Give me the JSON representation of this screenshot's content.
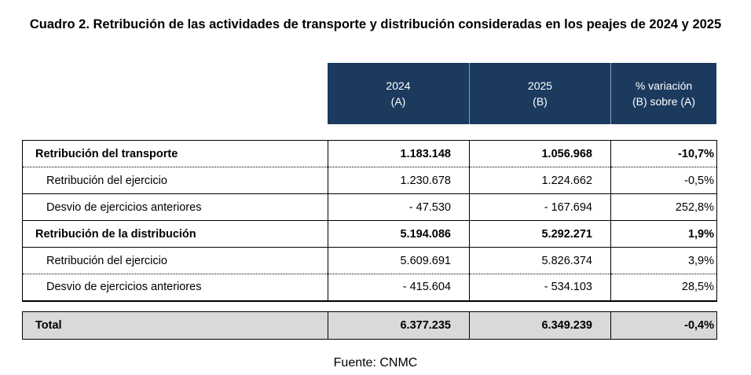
{
  "title": "Cuadro 2. Retribución de las actividades de transporte y distribución consideradas en los peajes de 2024 y 2025",
  "header": {
    "col1": {
      "line1": "2024",
      "line2": "(A)"
    },
    "col2": {
      "line1": "2025",
      "line2": "(B)"
    },
    "col3": {
      "line1": "% variación",
      "line2": "(B) sobre (A)"
    }
  },
  "rows": [
    {
      "label": "Retribución del transporte",
      "v2024": "1.183.148",
      "v2025": "1.056.968",
      "var": "-10,7%"
    },
    {
      "label": "Retribución del ejercicio",
      "v2024": "1.230.678",
      "v2025": "1.224.662",
      "var": "-0,5%"
    },
    {
      "label": "Desvio de ejercicios anteriores",
      "v2024": "- 47.530",
      "v2025": "- 167.694",
      "var": "252,8%"
    },
    {
      "label": "Retribución de la distribución",
      "v2024": "5.194.086",
      "v2025": "5.292.271",
      "var": "1,9%"
    },
    {
      "label": "Retribución del ejercicio",
      "v2024": "5.609.691",
      "v2025": "5.826.374",
      "var": "3,9%"
    },
    {
      "label": "Desvio de ejercicios anteriores",
      "v2024": "- 415.604",
      "v2025": "- 534.103",
      "var": "28,5%"
    }
  ],
  "total": {
    "label": "Total",
    "v2024": "6.377.235",
    "v2025": "6.349.239",
    "var": "-0,4%"
  },
  "source": "Fuente: CNMC"
}
